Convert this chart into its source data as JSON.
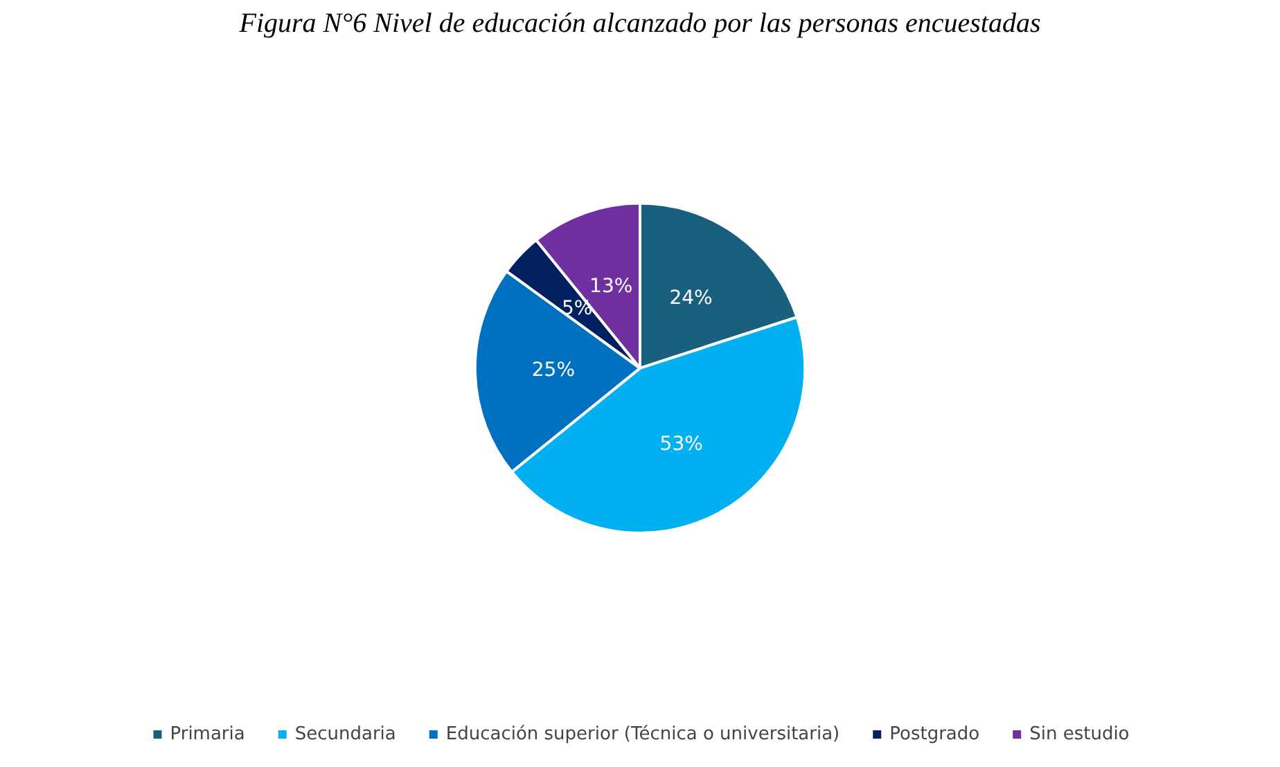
{
  "chart_data": {
    "type": "pie",
    "title": "Figura N°6 Nivel de educación alcanzado por las personas encuestadas",
    "categories": [
      "Primaria",
      "Secundaria",
      "Educación superior (Técnica o universitaria)",
      "Postgrado",
      "Sin estudio"
    ],
    "values": [
      24,
      53,
      25,
      5,
      13
    ],
    "value_labels": [
      "24%",
      "53%",
      "25%",
      "5%",
      "13%"
    ],
    "colors": [
      "#19607f",
      "#00b0f0",
      "#0070c0",
      "#002060",
      "#7030a0"
    ],
    "legend": "bottom"
  }
}
